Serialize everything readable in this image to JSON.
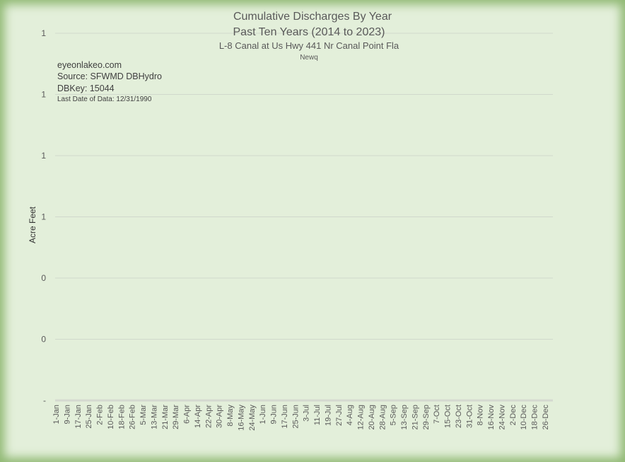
{
  "chart_data": {
    "type": "line",
    "title": "Cumulative Discharges By Year",
    "subtitle": "Past Ten Years (2014 to 2023)",
    "station": "L-8 Canal at Us Hwy 441 Nr Canal Point Fla",
    "site_code": "Newq",
    "ylabel": "Acre Feet",
    "xlabel": "",
    "y_tick_labels": [
      "-",
      "0",
      "0",
      "1",
      "1",
      "1",
      "1"
    ],
    "x_tick_labels": [
      "1-Jan",
      "9-Jan",
      "17-Jan",
      "25-Jan",
      "2-Feb",
      "10-Feb",
      "18-Feb",
      "26-Feb",
      "5-Mar",
      "13-Mar",
      "21-Mar",
      "29-Mar",
      "6-Apr",
      "14-Apr",
      "22-Apr",
      "30-Apr",
      "8-May",
      "16-May",
      "24-May",
      "1-Jun",
      "9-Jun",
      "17-Jun",
      "25-Jun",
      "3-Jul",
      "11-Jul",
      "19-Jul",
      "27-Jul",
      "4-Aug",
      "12-Aug",
      "20-Aug",
      "28-Aug",
      "5-Sep",
      "13-Sep",
      "21-Sep",
      "29-Sep",
      "7-Oct",
      "15-Oct",
      "23-Oct",
      "31-Oct",
      "8-Nov",
      "16-Nov",
      "24-Nov",
      "2-Dec",
      "10-Dec",
      "18-Dec",
      "26-Dec"
    ],
    "series": [],
    "grid": true,
    "legend": "none"
  },
  "annotations": {
    "website": "eyeonlakeo.com",
    "source": "Source: SFWMD DBHydro",
    "dbkey": "DBKey: 15044",
    "last_date": "Last Date of Data: 12/31/1990"
  },
  "colors": {
    "background": "#e3efda",
    "border_glow": "#8fb872",
    "grid": "#d0d8cc",
    "text": "#595959"
  }
}
